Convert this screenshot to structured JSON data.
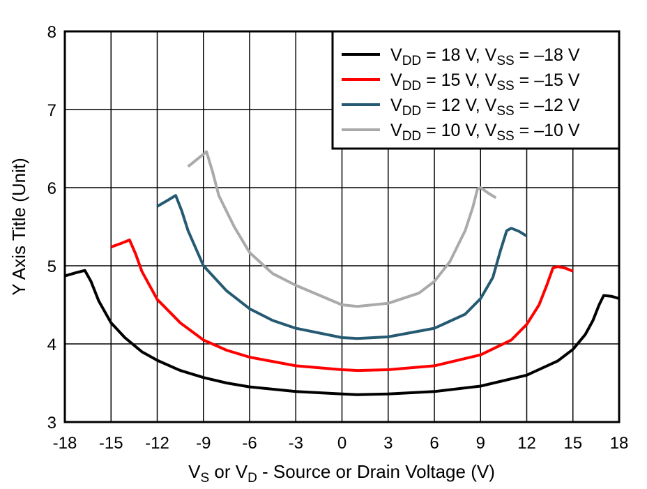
{
  "chart_data": {
    "type": "line",
    "title": "",
    "xlabel": {
      "parts": [
        "V",
        "S",
        " or V",
        "D",
        " - Source or Drain Voltage (V)"
      ]
    },
    "ylabel": "Y Axis Title (Unit)",
    "xlim": [
      -18,
      18
    ],
    "ylim": [
      3,
      8
    ],
    "xticks": [
      "-18",
      "-15",
      "-12",
      "-9",
      "-6",
      "-3",
      "0",
      "3",
      "6",
      "9",
      "12",
      "15",
      "18"
    ],
    "xtick_values": [
      -18,
      -15,
      -12,
      -9,
      -6,
      -3,
      0,
      3,
      6,
      9,
      12,
      15,
      18
    ],
    "yticks": [
      "3",
      "4",
      "5",
      "6",
      "7",
      "8"
    ],
    "ytick_values": [
      3,
      4,
      5,
      6,
      7,
      8
    ],
    "grid": true,
    "legend_position": "top-right",
    "series": [
      {
        "name": "VDD = 18 V, VSS = –18 V",
        "label_parts": [
          "V",
          "DD",
          " = 18 V, V",
          "SS",
          " = –18 V"
        ],
        "color": "#000000",
        "x": [
          -18,
          -17.3,
          -16.7,
          -16.3,
          -15.8,
          -15,
          -14.1,
          -13,
          -12,
          -10.5,
          -9,
          -7.5,
          -6,
          -3,
          0,
          1,
          3,
          6,
          9,
          12,
          14,
          15,
          15.8,
          16.3,
          16.7,
          17,
          17.5,
          18
        ],
        "y": [
          4.87,
          4.91,
          4.94,
          4.8,
          4.55,
          4.27,
          4.08,
          3.9,
          3.79,
          3.66,
          3.57,
          3.5,
          3.45,
          3.39,
          3.36,
          3.35,
          3.36,
          3.39,
          3.46,
          3.6,
          3.78,
          3.93,
          4.12,
          4.3,
          4.5,
          4.62,
          4.61,
          4.58
        ]
      },
      {
        "name": "VDD = 15 V, VSS = –15 V",
        "label_parts": [
          "V",
          "DD",
          " = 15 V, V",
          "SS",
          " = –15 V"
        ],
        "color": "#ff0000",
        "x": [
          -15,
          -14.3,
          -13.8,
          -13.4,
          -13,
          -12,
          -10.5,
          -9,
          -7.5,
          -6,
          -3,
          0,
          1,
          3,
          6,
          9,
          11,
          12,
          12.8,
          13.3,
          13.7,
          14,
          14.5,
          15
        ],
        "y": [
          5.24,
          5.29,
          5.33,
          5.15,
          4.93,
          4.57,
          4.27,
          4.05,
          3.92,
          3.83,
          3.72,
          3.67,
          3.66,
          3.67,
          3.72,
          3.86,
          4.05,
          4.25,
          4.5,
          4.75,
          4.97,
          4.99,
          4.97,
          4.93
        ]
      },
      {
        "name": "VDD = 12 V, VSS = –12 V",
        "label_parts": [
          "V",
          "DD",
          " = 12 V, V",
          "SS",
          " = –12 V"
        ],
        "color": "#255a72",
        "x": [
          -12,
          -11.3,
          -10.8,
          -10.4,
          -10,
          -9,
          -7.5,
          -6,
          -4.5,
          -3,
          0,
          1,
          3,
          6,
          8,
          9,
          9.8,
          10.3,
          10.7,
          11,
          11.5,
          12
        ],
        "y": [
          5.76,
          5.84,
          5.9,
          5.7,
          5.45,
          5.0,
          4.68,
          4.45,
          4.3,
          4.2,
          4.08,
          4.07,
          4.09,
          4.2,
          4.38,
          4.58,
          4.85,
          5.2,
          5.45,
          5.48,
          5.44,
          5.38
        ]
      },
      {
        "name": "VDD = 10 V, VSS = –10 V",
        "label_parts": [
          "V",
          "DD",
          " = 10 V, V",
          "SS",
          " = –10 V"
        ],
        "color": "#aaaaaa",
        "x": [
          -10,
          -9.3,
          -8.8,
          -8.4,
          -8,
          -7,
          -6,
          -4.5,
          -3,
          0,
          1,
          3,
          5,
          6,
          7,
          8,
          8.5,
          8.8,
          9,
          9.5,
          10
        ],
        "y": [
          6.27,
          6.38,
          6.46,
          6.2,
          5.9,
          5.5,
          5.17,
          4.9,
          4.75,
          4.5,
          4.48,
          4.52,
          4.65,
          4.8,
          5.05,
          5.45,
          5.75,
          5.98,
          6.0,
          5.93,
          5.87
        ]
      }
    ]
  }
}
